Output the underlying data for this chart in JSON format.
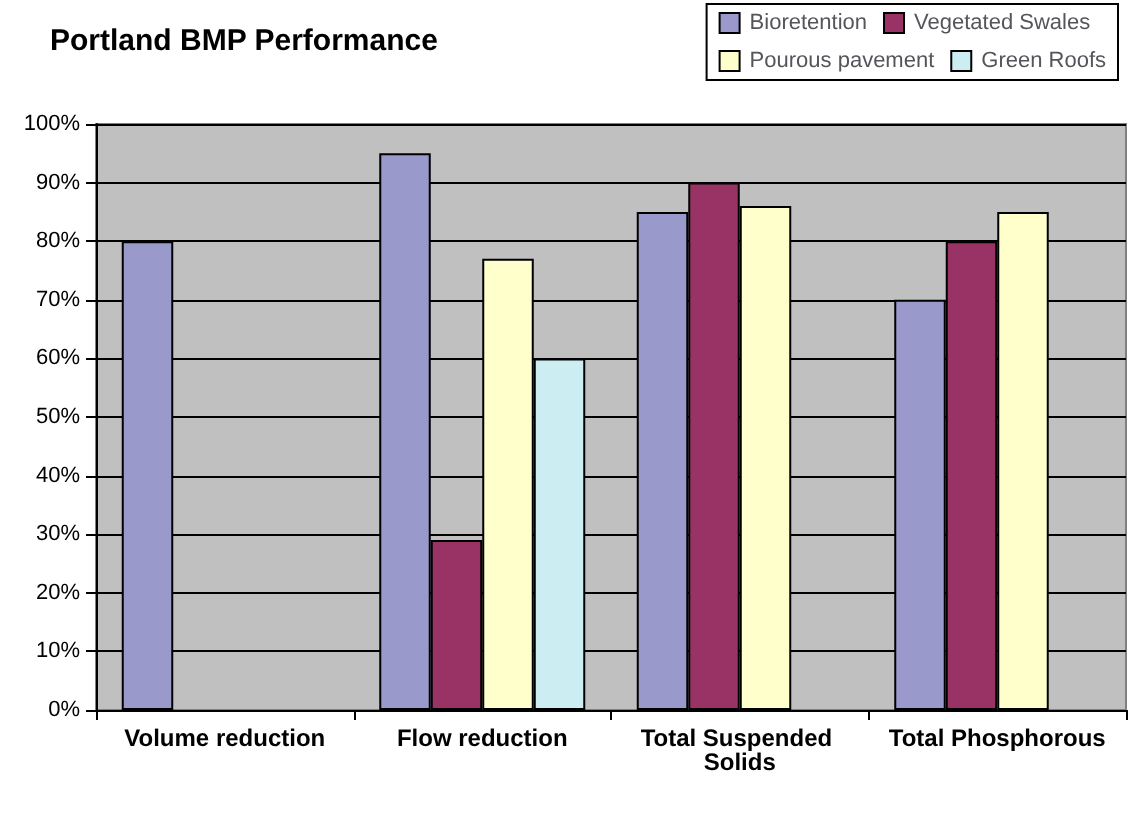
{
  "chart_data": {
    "type": "bar",
    "title": "Portland BMP Performance",
    "categories": [
      "Volume reduction",
      "Flow reduction",
      "Total Suspended Solids",
      "Total Phosphorous"
    ],
    "series": [
      {
        "name": "Bioretention",
        "color": "#9999cc",
        "values": [
          80,
          95,
          85,
          70
        ]
      },
      {
        "name": "Vegetated Swales",
        "color": "#993366",
        "values": [
          null,
          29,
          90,
          80
        ]
      },
      {
        "name": "Pourous pavement",
        "color": "#ffffcc",
        "values": [
          null,
          77,
          86,
          85
        ]
      },
      {
        "name": "Green Roofs",
        "color": "#cceef2",
        "values": [
          null,
          60,
          null,
          null
        ]
      }
    ],
    "ylim": [
      0,
      100
    ],
    "yticks": [
      {
        "value": 0,
        "label": "0%"
      },
      {
        "value": 10,
        "label": "10%"
      },
      {
        "value": 20,
        "label": "20%"
      },
      {
        "value": 30,
        "label": "30%"
      },
      {
        "value": 40,
        "label": "40%"
      },
      {
        "value": 50,
        "label": "50%"
      },
      {
        "value": 60,
        "label": "60%"
      },
      {
        "value": 70,
        "label": "70%"
      },
      {
        "value": 80,
        "label": "80%"
      },
      {
        "value": 90,
        "label": "90%"
      },
      {
        "value": 100,
        "label": "100%"
      }
    ],
    "grid": "y",
    "legend": "top right"
  }
}
